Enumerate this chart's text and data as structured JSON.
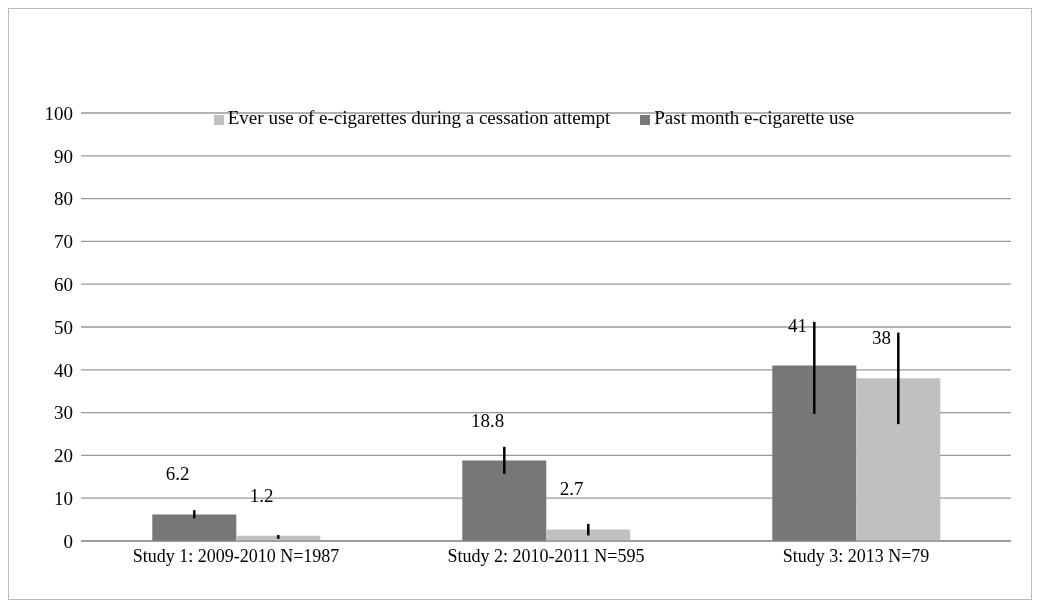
{
  "chart_data": {
    "type": "bar",
    "categories": [
      "Study 1: 2009-2010 N=1987",
      "Study 2: 2010-2011 N=595",
      "Study 3: 2013 N=79"
    ],
    "series": [
      {
        "name": "Past month e-cigarette use",
        "color": "#777777",
        "values": [
          6.2,
          18.8,
          41
        ],
        "errors": [
          [
            5.3,
            7.2
          ],
          [
            15.7,
            22
          ],
          [
            29.7,
            51.2
          ]
        ]
      },
      {
        "name": "Ever use of e-cigarettes during a cessation attempt",
        "color": "#c0c0c0",
        "values": [
          1.2,
          2.7,
          38
        ],
        "errors": [
          [
            0.5,
            1.4
          ],
          [
            1.3,
            4.0
          ],
          [
            27.3,
            48.7
          ]
        ]
      }
    ],
    "ylim": [
      0,
      100
    ],
    "yticks": [
      0,
      10,
      20,
      30,
      40,
      50,
      60,
      70,
      80,
      90,
      100
    ],
    "grid": "y",
    "legend": "top",
    "data_labels": true
  }
}
